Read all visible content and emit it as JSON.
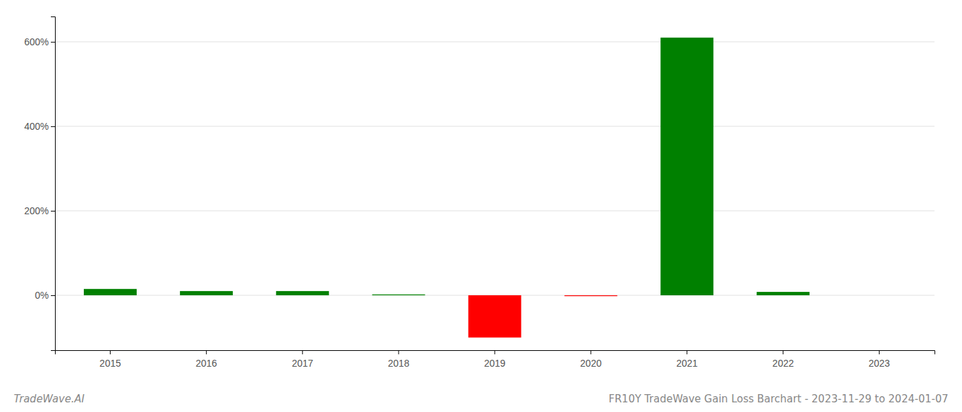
{
  "chart_data": {
    "type": "bar",
    "title": "FR10Y TradeWave Gain Loss Barchart - 2023-11-29 to 2024-01-07",
    "annotations": [
      "TradeWave.AI"
    ],
    "categories": [
      "2015",
      "2016",
      "2017",
      "2018",
      "2019",
      "2020",
      "2021",
      "2022",
      "2023"
    ],
    "values": [
      15.0,
      10.0,
      10.0,
      2.0,
      -100.0,
      -2.0,
      610.0,
      8.0,
      0.0
    ],
    "colors": [
      "#008000",
      "#008000",
      "#008000",
      "#008000",
      "#ff0000",
      "#ff0000",
      "#008000",
      "#008000",
      "#008000"
    ],
    "ylim": [
      -130,
      660
    ],
    "yticks": [
      {
        "value": 0,
        "label": "0%"
      },
      {
        "value": 200,
        "label": "200%"
      },
      {
        "value": 400,
        "label": "400%"
      },
      {
        "value": 600,
        "label": "600%"
      }
    ],
    "grid": true
  }
}
